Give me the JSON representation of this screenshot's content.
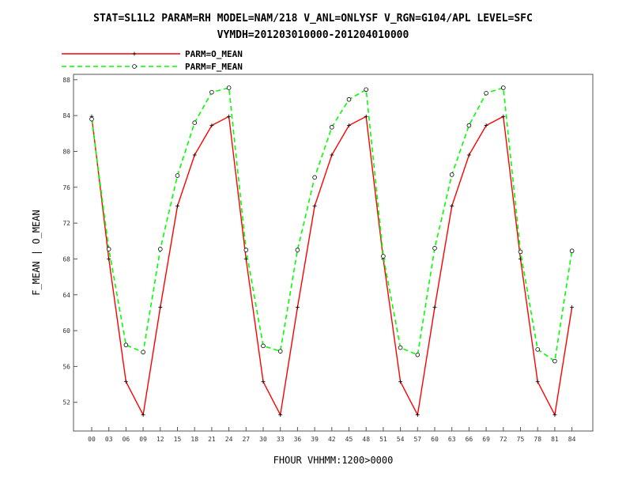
{
  "title_line1": "STAT=SL1L2 PARAM=RH MODEL=NAM/218 V_ANL=ONLYSF V_RGN=G104/APL LEVEL=SFC",
  "title_line2": "VYMDH=201203010000-201204010000",
  "chart_data": {
    "type": "line",
    "xlabel": "FHOUR VHHMM:1200>0000",
    "ylabel": "F_MEAN | O_MEAN",
    "x": [
      "00",
      "03",
      "06",
      "09",
      "12",
      "15",
      "18",
      "21",
      "24",
      "27",
      "30",
      "33",
      "36",
      "39",
      "42",
      "45",
      "48",
      "51",
      "54",
      "57",
      "60",
      "63",
      "66",
      "69",
      "72",
      "75",
      "78",
      "81",
      "84"
    ],
    "ylim": [
      48.8,
      88.6
    ],
    "yticks": [
      52,
      56,
      60,
      64,
      68,
      72,
      76,
      80,
      84,
      88
    ],
    "grid": false,
    "legend_position": "top-left",
    "series": [
      {
        "name": "PARM=O_MEAN",
        "color": "#ff0000",
        "style": "solid",
        "marker": "plus",
        "values": [
          83.9,
          68.0,
          54.3,
          50.6,
          62.6,
          73.9,
          79.6,
          82.9,
          83.9,
          68.0,
          54.3,
          50.6,
          62.6,
          73.9,
          79.6,
          82.9,
          83.9,
          68.0,
          54.3,
          50.6,
          62.6,
          73.9,
          79.6,
          82.9,
          83.9,
          68.0,
          54.3,
          50.6,
          62.6
        ]
      },
      {
        "name": "PARM=F_MEAN",
        "color": "#00ff00",
        "style": "dashed",
        "marker": "circle",
        "values": [
          83.6,
          69.1,
          58.4,
          57.6,
          69.1,
          77.3,
          83.2,
          86.6,
          87.1,
          69.0,
          58.3,
          57.7,
          69.0,
          77.1,
          82.7,
          85.8,
          86.9,
          68.3,
          58.1,
          57.3,
          69.2,
          77.4,
          82.9,
          86.5,
          87.1,
          68.8,
          57.9,
          56.6,
          68.9
        ]
      }
    ]
  }
}
